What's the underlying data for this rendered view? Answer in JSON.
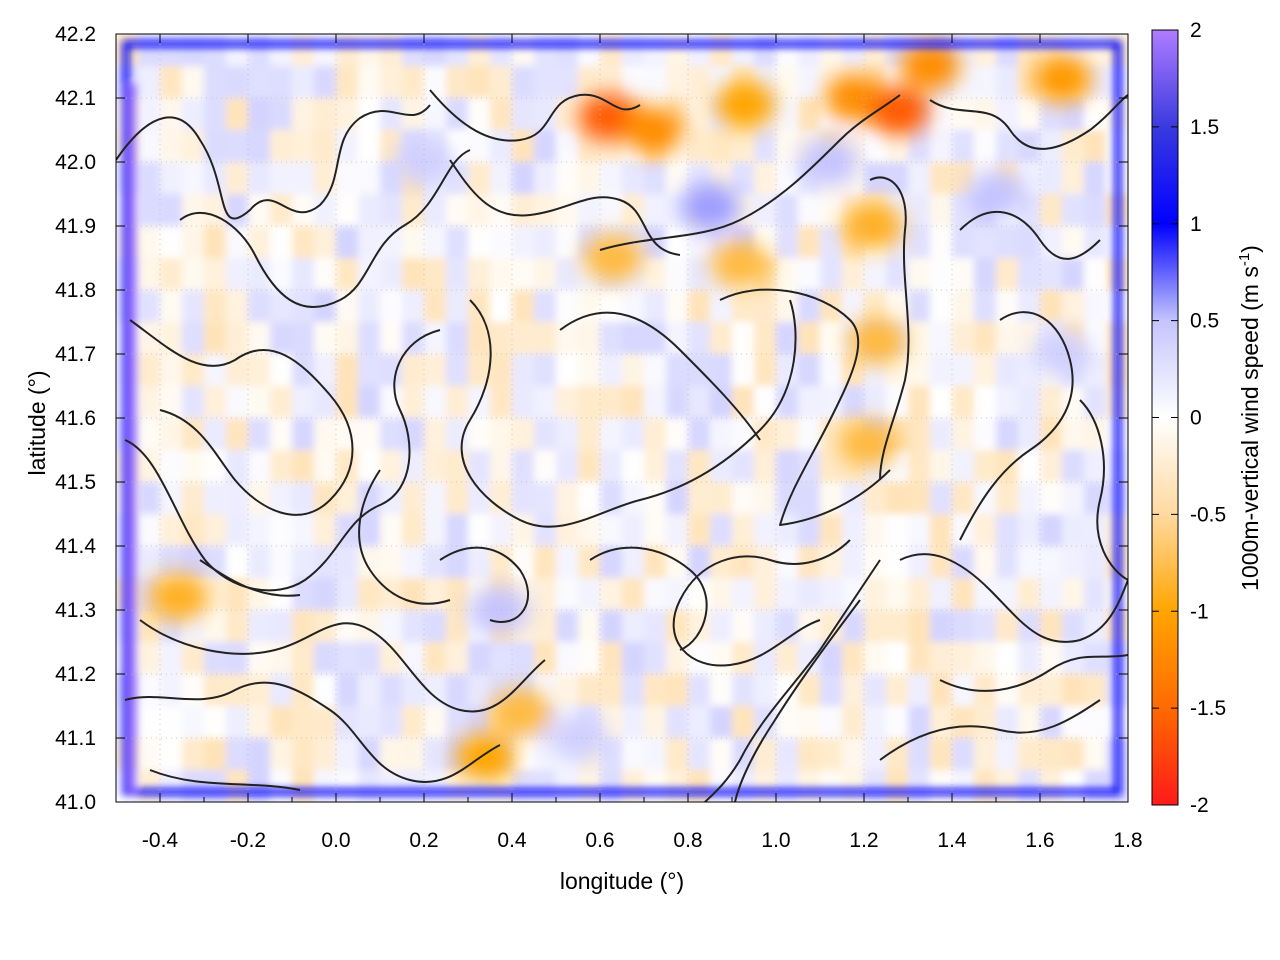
{
  "chart_data": {
    "type": "heatmap",
    "title": "",
    "xlabel": "longitude (°)",
    "ylabel": "latitude (°)",
    "xlim": [
      -0.5,
      1.8
    ],
    "ylim": [
      41.0,
      42.2
    ],
    "x_ticks": [
      "-0.4",
      "-0.2",
      "0.0",
      "0.2",
      "0.4",
      "0.6",
      "0.8",
      "1.0",
      "1.2",
      "1.4",
      "1.6",
      "1.8"
    ],
    "x_tick_values": [
      -0.4,
      -0.2,
      0.0,
      0.2,
      0.4,
      0.6,
      0.8,
      1.0,
      1.2,
      1.4,
      1.6,
      1.8
    ],
    "y_ticks": [
      "41.0",
      "41.1",
      "41.2",
      "41.3",
      "41.4",
      "41.5",
      "41.6",
      "41.7",
      "41.8",
      "41.9",
      "42.0",
      "42.1",
      "42.2"
    ],
    "y_tick_values": [
      41.0,
      41.1,
      41.2,
      41.3,
      41.4,
      41.5,
      41.6,
      41.7,
      41.8,
      41.9,
      42.0,
      42.1,
      42.2
    ],
    "grid": true,
    "colorbar": {
      "label": "1000m-vertical wind speed (m s",
      "label_sup": "-1",
      "label_end": ")",
      "range": [
        -2,
        2
      ],
      "ticks": [
        "-2",
        "-1.5",
        "-1",
        "-0.5",
        "0",
        "0.5",
        "1",
        "1.5",
        "2"
      ],
      "tick_values": [
        -2,
        -1.5,
        -1,
        -0.5,
        0,
        0.5,
        1,
        1.5,
        2
      ],
      "colors": {
        "-2": "#ff1a1a",
        "-1.5": "#ff6a00",
        "-1": "#ffa500",
        "-0.5": "#ffd9a0",
        "0": "#ffffff",
        "0.5": "#c4c4ff",
        "1": "#0000ff",
        "1.5": "#3a3ae0",
        "2": "#b07cff"
      }
    },
    "highlights": [
      {
        "lon": 0.62,
        "lat": 42.07,
        "value": -1.6
      },
      {
        "lon": 0.72,
        "lat": 42.05,
        "value": -1.2
      },
      {
        "lon": 0.93,
        "lat": 42.09,
        "value": -1.0
      },
      {
        "lon": 1.18,
        "lat": 42.1,
        "value": -1.2
      },
      {
        "lon": 1.28,
        "lat": 42.08,
        "value": -1.6
      },
      {
        "lon": 1.35,
        "lat": 42.15,
        "value": -1.2
      },
      {
        "lon": 1.65,
        "lat": 42.13,
        "value": -1.1
      },
      {
        "lon": 1.22,
        "lat": 41.9,
        "value": -0.9
      },
      {
        "lon": 1.23,
        "lat": 41.72,
        "value": -0.8
      },
      {
        "lon": 1.21,
        "lat": 41.56,
        "value": -0.8
      },
      {
        "lon": 0.63,
        "lat": 41.85,
        "value": -0.8
      },
      {
        "lon": 0.92,
        "lat": 41.84,
        "value": -0.8
      },
      {
        "lon": -0.36,
        "lat": 41.32,
        "value": -0.9
      },
      {
        "lon": 0.34,
        "lat": 41.07,
        "value": -1.0
      },
      {
        "lon": 0.42,
        "lat": 41.14,
        "value": -0.8
      },
      {
        "lon": 0.2,
        "lat": 42.0,
        "value": 0.4
      },
      {
        "lon": 0.85,
        "lat": 41.93,
        "value": 0.6
      },
      {
        "lon": 1.12,
        "lat": 42.0,
        "value": 0.5
      },
      {
        "lon": 1.5,
        "lat": 41.95,
        "value": 0.5
      },
      {
        "lon": 1.65,
        "lat": 41.7,
        "value": 0.4
      },
      {
        "lon": 0.37,
        "lat": 41.3,
        "value": 0.5
      },
      {
        "lon": 0.55,
        "lat": 41.1,
        "value": 0.4
      }
    ]
  }
}
